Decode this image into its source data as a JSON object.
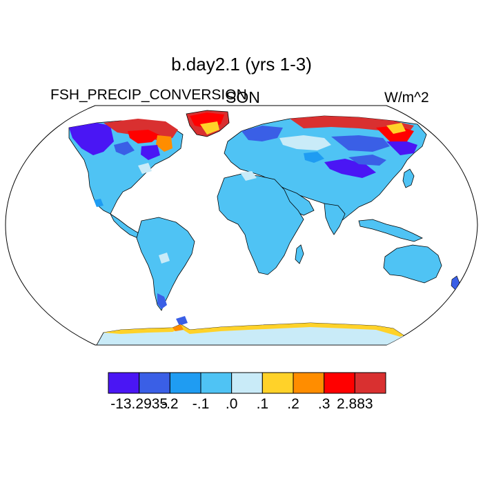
{
  "title": "b.day2.1 (yrs 1-3)",
  "variable": "FSH_PRECIP_CONVERSION",
  "season": "SON",
  "units": "W/m^2",
  "colors": {
    "lvl_m3": "#4a16f4",
    "lvl_m2": "#3a5fe6",
    "lvl_m1": "#1f9cf2",
    "lvl_0": "#4fc3f4",
    "lvl_p0": "#c9ebf8",
    "lvl_p1": "#ffd229",
    "lvl_p2": "#ff8d00",
    "lvl_p3": "#ff0000",
    "lvl_p4": "#d93030"
  },
  "colorbar": {
    "colors": [
      "#4a16f4",
      "#3a5fe6",
      "#1f9cf2",
      "#4fc3f4",
      "#c9ebf8",
      "#ffd229",
      "#ff8d00",
      "#ff0000",
      "#d93030"
    ],
    "labels": [
      "-13.2935",
      "-.2",
      "-.1",
      ".0",
      ".1",
      ".2",
      ".3",
      "2.883"
    ]
  }
}
